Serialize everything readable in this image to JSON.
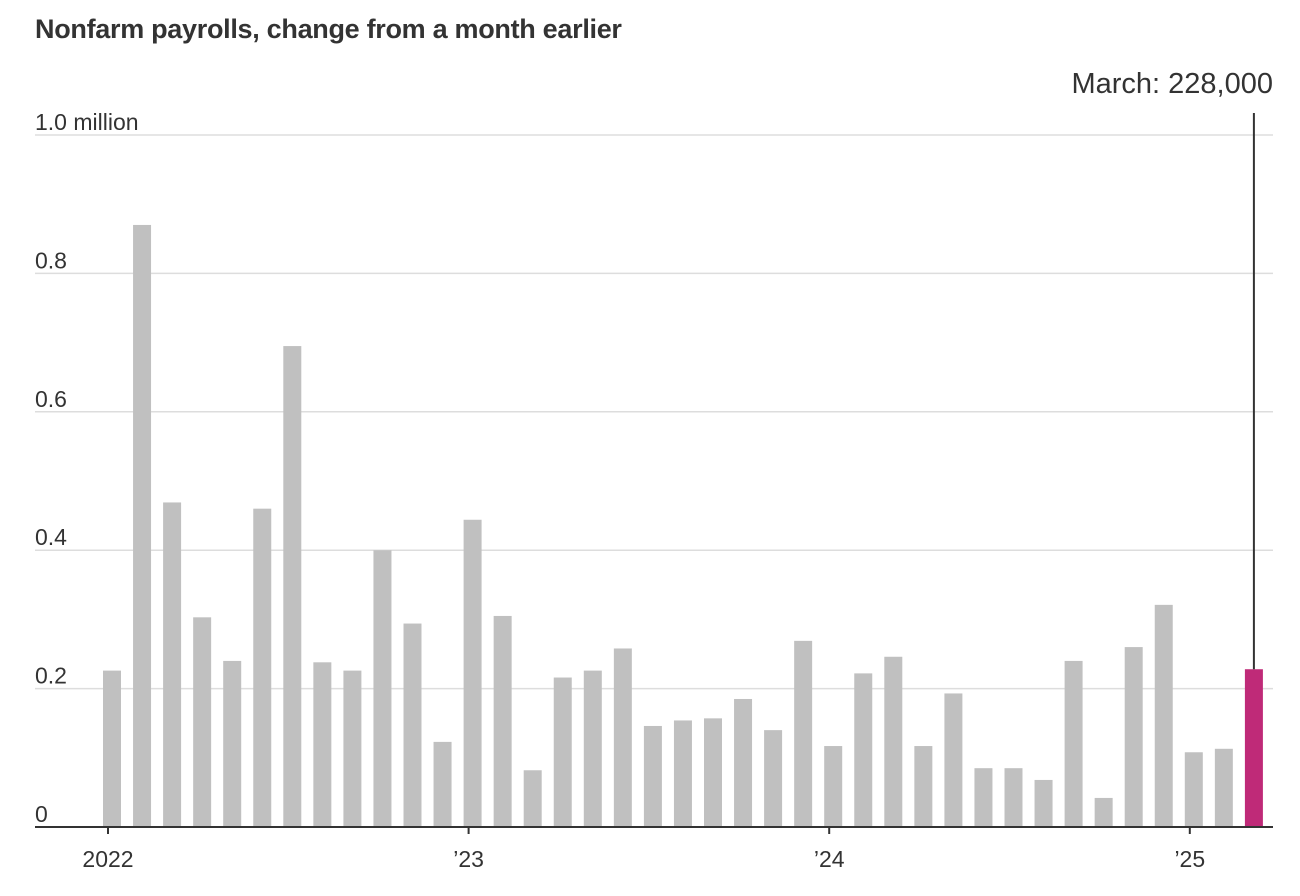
{
  "title": "Nonfarm payrolls, change from a month earlier",
  "chart_data": {
    "type": "bar",
    "title": "Nonfarm payrolls, change from a month earlier",
    "x": [
      "2022-01",
      "2022-02",
      "2022-03",
      "2022-04",
      "2022-05",
      "2022-06",
      "2022-07",
      "2022-08",
      "2022-09",
      "2022-10",
      "2022-11",
      "2022-12",
      "2023-01",
      "2023-02",
      "2023-03",
      "2023-04",
      "2023-05",
      "2023-06",
      "2023-07",
      "2023-08",
      "2023-09",
      "2023-10",
      "2023-11",
      "2023-12",
      "2024-01",
      "2024-02",
      "2024-03",
      "2024-04",
      "2024-05",
      "2024-06",
      "2024-07",
      "2024-08",
      "2024-09",
      "2024-10",
      "2024-11",
      "2024-12",
      "2025-01",
      "2025-02",
      "2025-03"
    ],
    "values": [
      0.226,
      0.87,
      0.469,
      0.303,
      0.24,
      0.46,
      0.695,
      0.238,
      0.226,
      0.4,
      0.294,
      0.123,
      0.444,
      0.305,
      0.082,
      0.216,
      0.226,
      0.258,
      0.146,
      0.154,
      0.157,
      0.185,
      0.14,
      0.269,
      0.117,
      0.222,
      0.246,
      0.117,
      0.193,
      0.085,
      0.085,
      0.068,
      0.24,
      0.042,
      0.26,
      0.321,
      0.108,
      0.113,
      0.228
    ],
    "unit": "million",
    "ylim": [
      0,
      1.0
    ],
    "yticks": [
      {
        "value": 1.0,
        "label": "1.0 million"
      },
      {
        "value": 0.8,
        "label": "0.8"
      },
      {
        "value": 0.6,
        "label": "0.6"
      },
      {
        "value": 0.4,
        "label": "0.4"
      },
      {
        "value": 0.2,
        "label": "0.2"
      },
      {
        "value": 0,
        "label": "0"
      }
    ],
    "xticks": [
      {
        "index": 0,
        "label": "2022"
      },
      {
        "index": 12,
        "label": "’23"
      },
      {
        "index": 24,
        "label": "’24"
      },
      {
        "index": 36,
        "label": "’25"
      }
    ],
    "grid": true,
    "highlight": {
      "index": 38,
      "label": "March: 228,000",
      "color": "#bf2a78"
    },
    "bar_color": "#c0c0c0",
    "grid_color": "#dddddd",
    "axis_color": "#333333"
  }
}
